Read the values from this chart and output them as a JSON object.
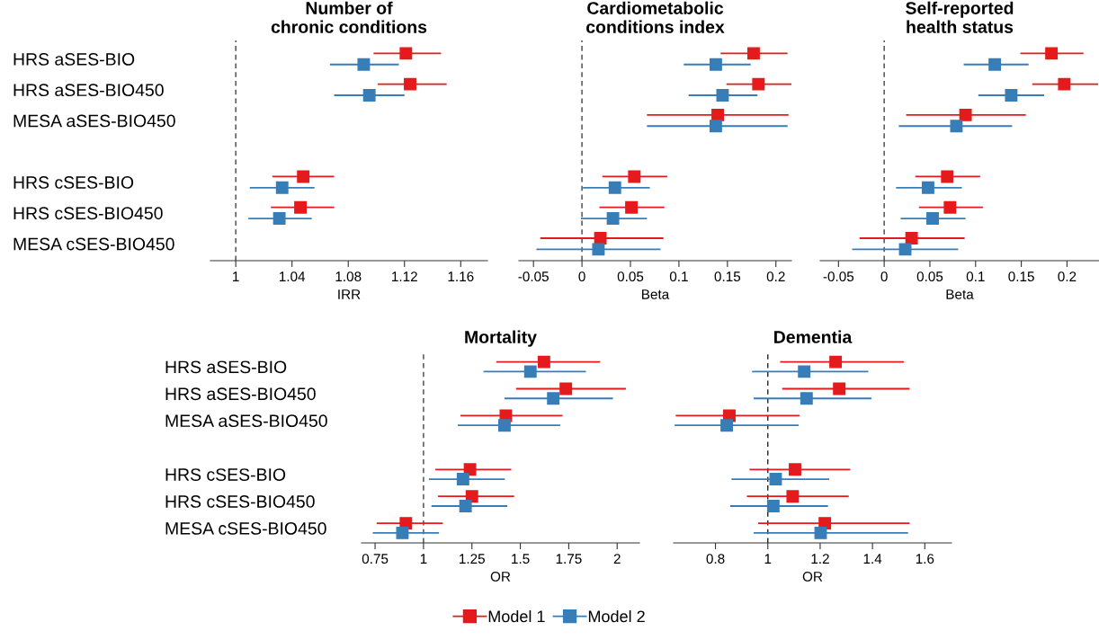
{
  "chart_data": [
    {
      "type": "scatter",
      "orientation": "horizontal",
      "title": "Number of\nchronic conditions",
      "xlabel": "IRR",
      "legend": "bottom",
      "categories": [
        "HRS aSES-BIO",
        "HRS aSES-BIO450",
        "MESA aSES-BIO450",
        null,
        "HRS cSES-BIO",
        "HRS cSES-BIO450",
        "MESA cSES-BIO450"
      ],
      "xlim": [
        0.982,
        1.179
      ],
      "xticks": [
        1,
        1.04,
        1.08,
        1.12,
        1.16
      ],
      "marker": "square",
      "grid": false,
      "ref_lines": [
        {
          "axis": "x",
          "value": 1,
          "line_style": "dashed",
          "color": "#444444"
        }
      ],
      "series": [
        {
          "name": "Model 1",
          "color": "#e41a1c",
          "values": [
            1.121,
            1.124,
            null,
            null,
            1.048,
            1.046,
            null
          ],
          "errors": [
            [
              1.098,
              1.146
            ],
            [
              1.101,
              1.15
            ],
            null,
            null,
            [
              1.026,
              1.07
            ],
            [
              1.025,
              1.07
            ],
            null
          ]
        },
        {
          "name": "Model 2",
          "color": "#377eb8",
          "values": [
            1.091,
            1.095,
            null,
            null,
            1.033,
            1.031,
            null
          ],
          "errors": [
            [
              1.067,
              1.116
            ],
            [
              1.07,
              1.12
            ],
            null,
            null,
            [
              1.01,
              1.056
            ],
            [
              1.009,
              1.054
            ],
            null
          ]
        }
      ]
    },
    {
      "type": "scatter",
      "orientation": "horizontal",
      "title": "Cardiometabolic\nconditions index",
      "xlabel": "Beta",
      "tick_labels": "x",
      "categories": [
        null,
        null,
        null,
        null,
        null,
        null,
        null
      ],
      "xlim": [
        -0.065,
        0.216
      ],
      "xticks": [
        -0.05,
        0,
        0.05,
        0.1,
        0.15,
        0.2
      ],
      "marker": "square",
      "grid": false,
      "ref_lines": [
        {
          "axis": "x",
          "value": 0,
          "line_style": "dashed",
          "color": "#444444"
        }
      ],
      "series": [
        {
          "color": "#e41a1c",
          "values": [
            0.177,
            0.182,
            0.14,
            null,
            0.054,
            0.051,
            0.019
          ],
          "errors": [
            [
              0.143,
              0.212
            ],
            [
              0.149,
              0.216
            ],
            [
              0.067,
              0.213
            ],
            null,
            [
              0.021,
              0.088
            ],
            [
              0.018,
              0.085
            ],
            [
              -0.043,
              0.084
            ]
          ]
        },
        {
          "color": "#377eb8",
          "values": [
            0.138,
            0.145,
            0.138,
            null,
            0.034,
            0.032,
            0.017
          ],
          "errors": [
            [
              0.105,
              0.174
            ],
            [
              0.11,
              0.181
            ],
            [
              0.067,
              0.212
            ],
            null,
            [
              0.001,
              0.07
            ],
            [
              -0.001,
              0.067
            ],
            [
              -0.047,
              0.081
            ]
          ]
        }
      ]
    },
    {
      "type": "scatter",
      "orientation": "horizontal",
      "title": "Self-reported\nhealth status",
      "xlabel": "Beta",
      "tick_labels": "x",
      "categories": [
        null,
        null,
        null,
        null,
        null,
        null,
        null
      ],
      "xlim": [
        -0.07,
        0.235
      ],
      "xticks": [
        -0.05,
        0,
        0.05,
        0.1,
        0.15,
        0.2
      ],
      "marker": "square",
      "grid": false,
      "ref_lines": [
        {
          "axis": "x",
          "value": 0,
          "line_style": "dashed",
          "color": "#444444"
        }
      ],
      "series": [
        {
          "color": "#e41a1c",
          "values": [
            0.183,
            0.197,
            0.089,
            null,
            0.069,
            0.072,
            0.03
          ],
          "errors": [
            [
              0.149,
              0.218
            ],
            [
              0.162,
              0.234
            ],
            [
              0.024,
              0.155
            ],
            null,
            [
              0.034,
              0.105
            ],
            [
              0.038,
              0.108
            ],
            [
              -0.027,
              0.088
            ]
          ]
        },
        {
          "color": "#377eb8",
          "values": [
            0.121,
            0.139,
            0.079,
            null,
            0.048,
            0.053,
            0.023
          ],
          "errors": [
            [
              0.087,
              0.158
            ],
            [
              0.103,
              0.175
            ],
            [
              0.016,
              0.14
            ],
            null,
            [
              0.013,
              0.085
            ],
            [
              0.018,
              0.089
            ],
            [
              -0.035,
              0.081
            ]
          ]
        }
      ]
    },
    {
      "type": "scatter",
      "orientation": "horizontal",
      "title": "Mortality",
      "xlabel": "OR",
      "categories": [
        "HRS aSES-BIO",
        "HRS aSES-BIO450",
        "MESA aSES-BIO450",
        null,
        "HRS cSES-BIO",
        "HRS cSES-BIO450",
        "MESA cSES-BIO450"
      ],
      "xlim": [
        0.68,
        2.115
      ],
      "xticks": [
        0.75,
        1,
        1.25,
        1.5,
        1.75,
        2
      ],
      "marker": "square",
      "grid": false,
      "ref_lines": [
        {
          "axis": "x",
          "value": 1,
          "line_style": "dashed",
          "color": "#444444"
        }
      ],
      "series": [
        {
          "color": "#e41a1c",
          "values": [
            1.622,
            1.735,
            1.425,
            null,
            1.24,
            1.25,
            0.909
          ],
          "errors": [
            [
              1.376,
              1.912
            ],
            [
              1.478,
              2.045
            ],
            [
              1.191,
              1.718
            ],
            null,
            [
              1.061,
              1.453
            ],
            [
              1.075,
              1.468
            ],
            [
              0.758,
              1.1
            ]
          ]
        },
        {
          "color": "#377eb8",
          "values": [
            1.552,
            1.67,
            1.418,
            null,
            1.204,
            1.217,
            0.891
          ],
          "errors": [
            [
              1.31,
              1.839
            ],
            [
              1.418,
              1.978
            ],
            [
              1.177,
              1.706
            ],
            null,
            [
              1.028,
              1.42
            ],
            [
              1.041,
              1.433
            ],
            [
              0.738,
              1.08
            ]
          ]
        }
      ]
    },
    {
      "type": "scatter",
      "orientation": "horizontal",
      "title": "Dementia",
      "xlabel": "OR",
      "tick_labels": "x",
      "categories": [
        null,
        null,
        null,
        null,
        null,
        null,
        null
      ],
      "xlim": [
        0.64,
        1.702
      ],
      "xticks": [
        0.8,
        1,
        1.2,
        1.4,
        1.6
      ],
      "marker": "square",
      "grid": false,
      "ref_lines": [
        {
          "axis": "x",
          "value": 1,
          "line_style": "dashed",
          "color": "#222222"
        }
      ],
      "series": [
        {
          "color": "#e41a1c",
          "values": [
            1.259,
            1.273,
            0.853,
            null,
            1.104,
            1.095,
            1.218
          ],
          "errors": [
            [
              1.047,
              1.52
            ],
            [
              1.055,
              1.542
            ],
            [
              0.648,
              1.121
            ],
            null,
            [
              0.93,
              1.315
            ],
            [
              0.92,
              1.309
            ],
            [
              0.963,
              1.542
            ]
          ]
        },
        {
          "color": "#377eb8",
          "values": [
            1.139,
            1.148,
            0.843,
            null,
            1.03,
            1.021,
            1.202
          ],
          "errors": [
            [
              0.94,
              1.384
            ],
            [
              0.946,
              1.396
            ],
            [
              0.644,
              1.118
            ],
            null,
            [
              0.861,
              1.235
            ],
            [
              0.856,
              1.23
            ],
            [
              0.946,
              1.536
            ]
          ]
        }
      ]
    }
  ]
}
